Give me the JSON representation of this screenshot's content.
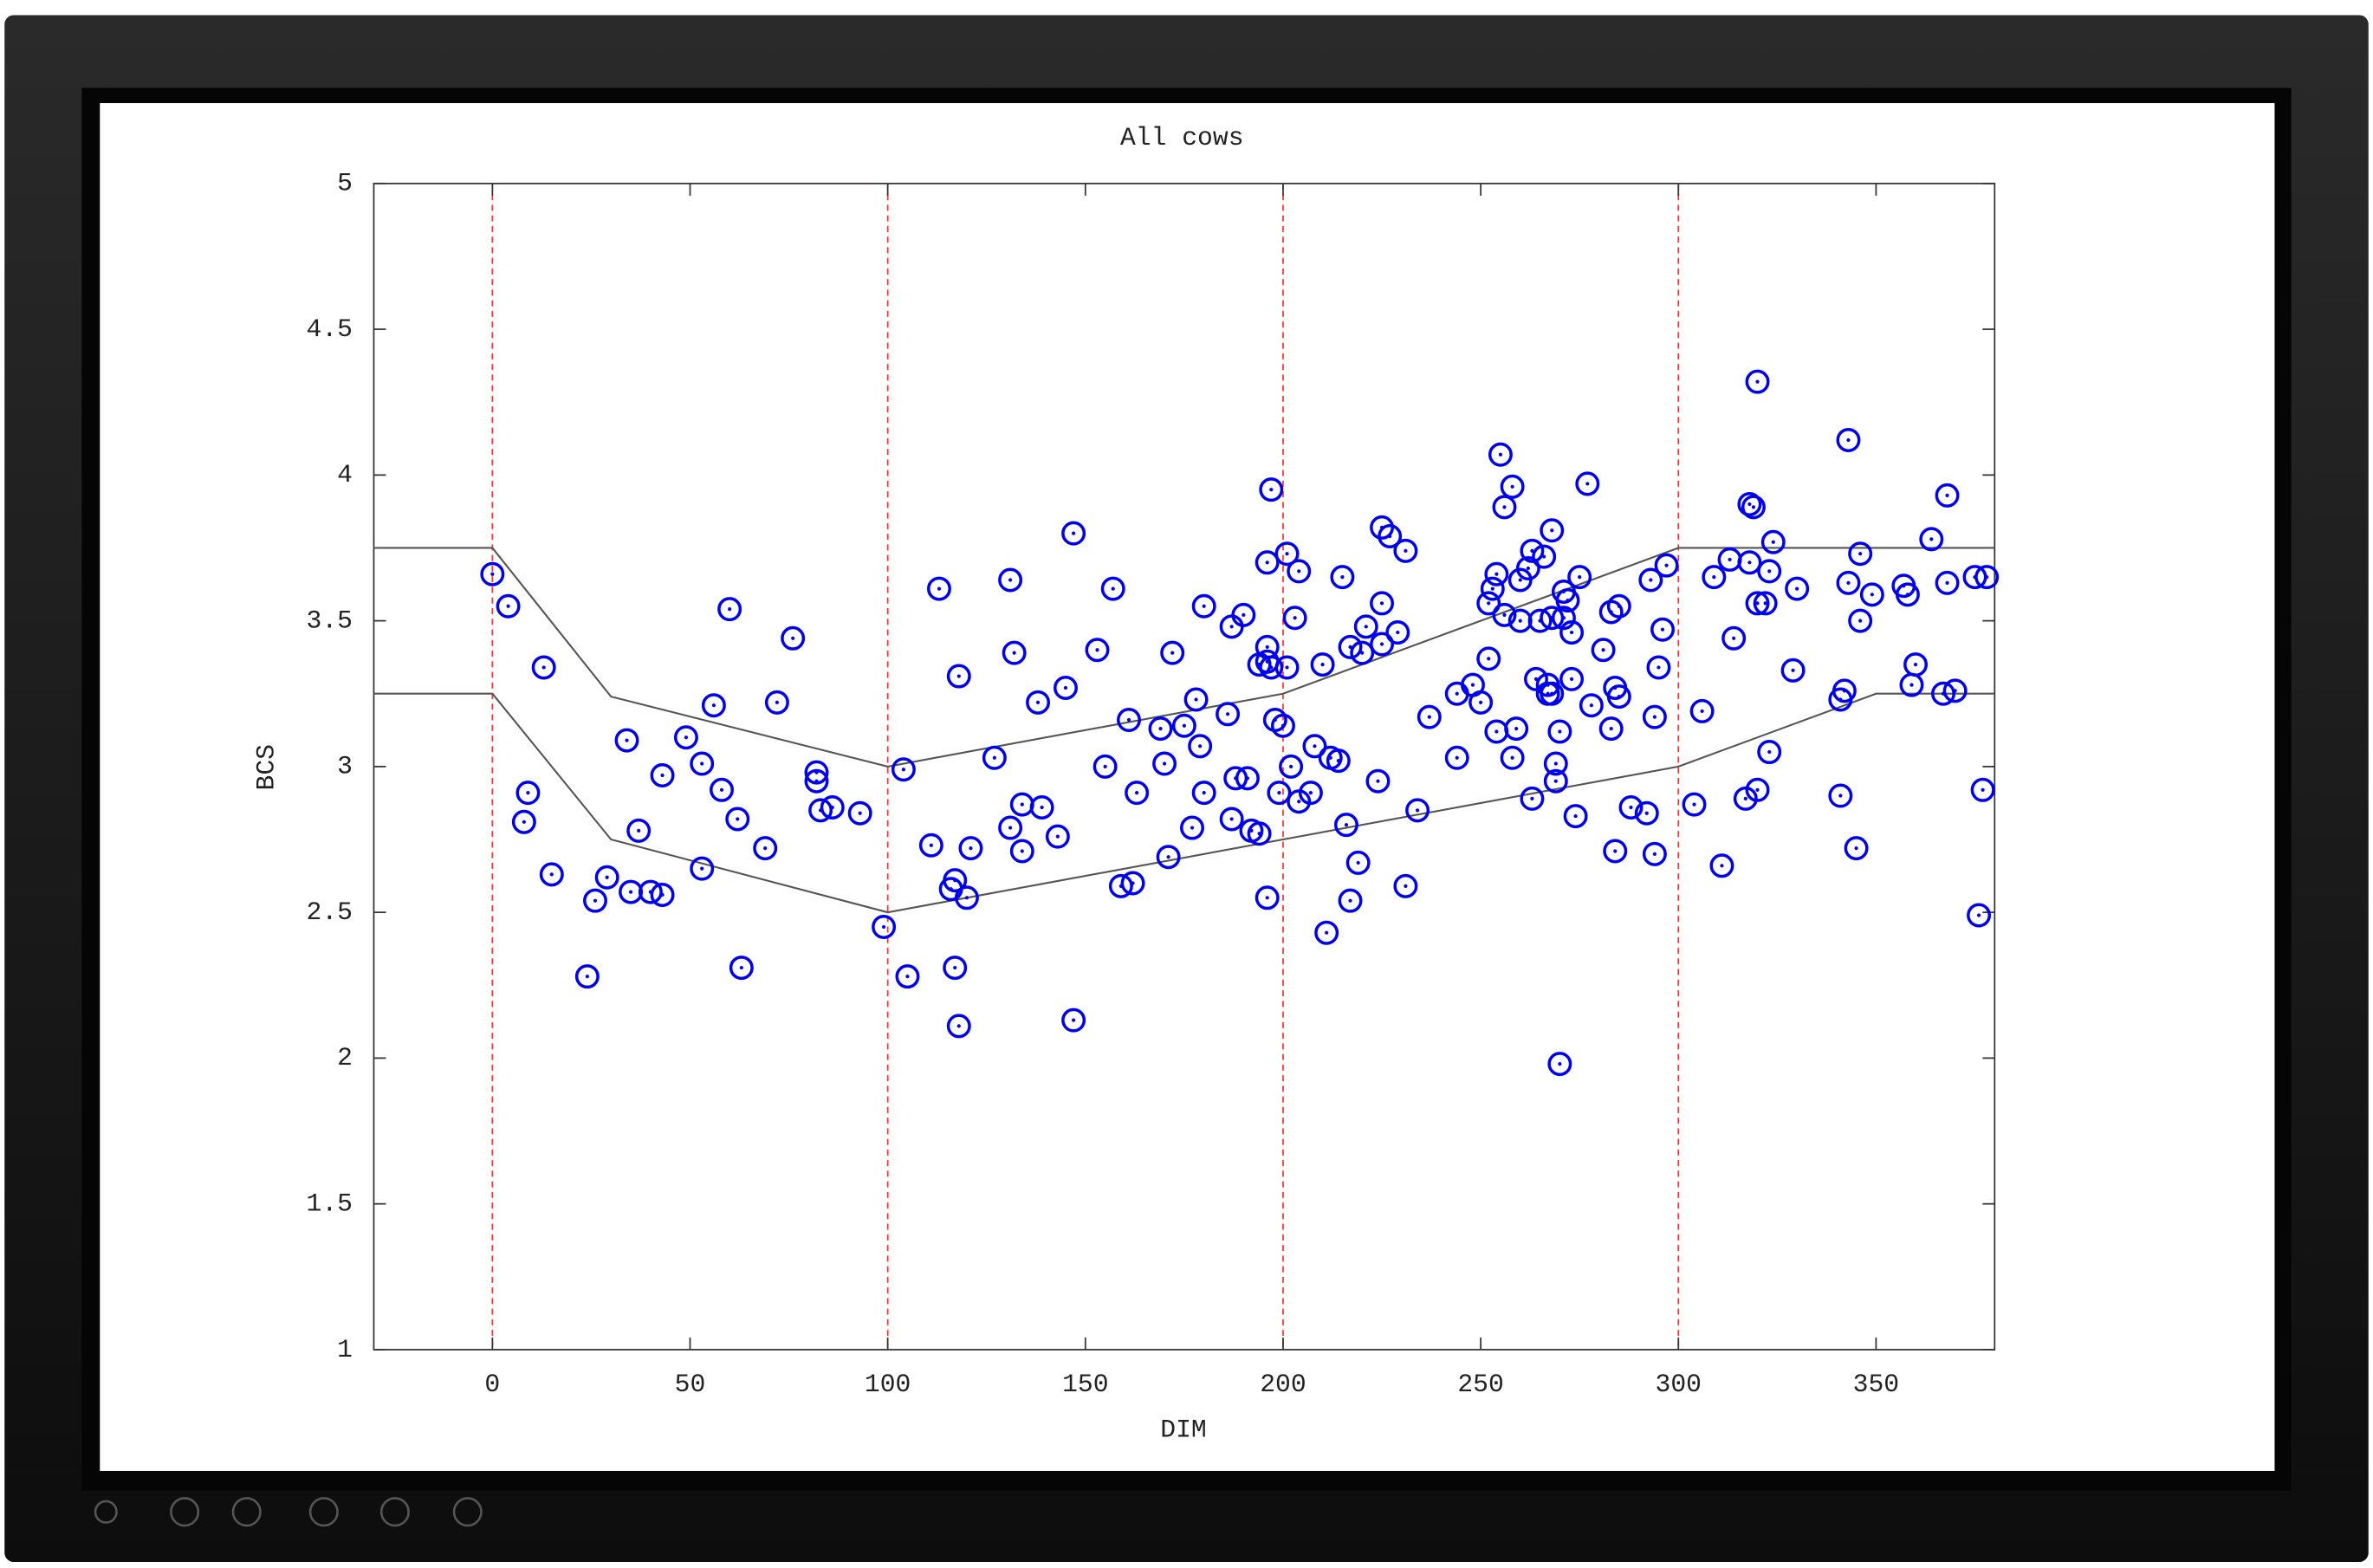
{
  "chart_data": {
    "type": "scatter",
    "title": "All cows",
    "x_label": "DIM",
    "y_label": "BCS",
    "xlim": [
      -30,
      380
    ],
    "ylim": [
      1,
      5
    ],
    "xticks": [
      0,
      50,
      100,
      150,
      200,
      250,
      300,
      350
    ],
    "yticks": [
      1,
      1.5,
      2,
      2.5,
      3,
      3.5,
      4,
      4.5,
      5
    ],
    "vlines": [
      0,
      100,
      200,
      300
    ],
    "vline_color": "#ff3333",
    "reference_lines": [
      {
        "color": "#555555",
        "x": [
          -30,
          0,
          30,
          100,
          200,
          300,
          380
        ],
        "y": [
          3.75,
          3.75,
          3.24,
          3.0,
          3.25,
          3.75,
          3.75
        ]
      },
      {
        "color": "#555555",
        "x": [
          -30,
          0,
          30,
          100,
          200,
          300,
          350,
          380
        ],
        "y": [
          3.25,
          3.25,
          2.75,
          2.5,
          2.75,
          3.0,
          3.25,
          3.25
        ]
      }
    ],
    "series": [
      {
        "color": "#0000ee",
        "x": [
          0,
          4,
          13,
          9,
          8,
          15,
          24,
          26,
          29,
          34,
          35,
          37,
          40,
          43,
          43,
          49,
          53,
          53,
          56,
          58,
          60,
          62,
          63,
          69,
          72,
          76,
          82,
          82,
          83,
          86,
          93,
          99,
          104,
          105,
          111,
          113,
          116,
          117,
          117,
          118,
          118,
          120,
          121,
          127,
          131,
          131,
          132,
          134,
          134,
          138,
          139,
          143,
          145,
          147,
          147,
          153,
          155,
          157,
          159,
          161,
          162,
          163,
          169,
          170,
          171,
          172,
          175,
          177,
          178,
          179,
          180,
          180,
          186,
          187,
          187,
          188,
          190,
          191,
          192,
          194,
          194,
          196,
          196,
          196,
          196,
          197,
          197,
          198,
          199,
          200,
          201,
          201,
          202,
          203,
          204,
          204,
          207,
          208,
          210,
          211,
          212,
          214,
          215,
          216,
          217,
          217,
          219,
          220,
          221,
          224,
          225,
          225,
          225,
          227,
          229,
          231,
          231,
          234,
          237,
          244,
          244,
          248,
          250,
          252,
          252,
          253,
          254,
          254,
          255,
          256,
          256,
          258,
          258,
          259,
          260,
          260,
          262,
          263,
          263,
          264,
          265,
          266,
          267,
          267,
          268,
          268,
          268,
          269,
          269,
          270,
          270,
          271,
          271,
          272,
          273,
          273,
          274,
          275,
          277,
          278,
          281,
          283,
          283,
          284,
          284,
          285,
          285,
          288,
          292,
          293,
          294,
          294,
          295,
          296,
          297,
          304,
          306,
          309,
          311,
          313,
          314,
          317,
          318,
          318,
          319,
          320,
          320,
          320,
          322,
          323,
          323,
          324,
          329,
          330,
          341,
          341,
          342,
          343,
          343,
          345,
          346,
          346,
          349,
          357,
          358,
          359,
          360,
          364,
          367,
          368,
          368,
          370,
          375,
          376,
          377,
          378
        ],
        "values": [
          3.66,
          3.55,
          3.34,
          2.91,
          2.81,
          2.63,
          2.28,
          2.54,
          2.62,
          3.09,
          2.57,
          2.78,
          2.57,
          2.56,
          2.97,
          3.1,
          2.65,
          3.01,
          3.21,
          2.92,
          3.54,
          2.82,
          2.31,
          2.72,
          3.22,
          3.44,
          2.98,
          2.95,
          2.85,
          2.86,
          2.84,
          2.45,
          2.99,
          2.28,
          2.73,
          3.61,
          2.58,
          2.61,
          2.31,
          3.31,
          2.11,
          2.55,
          2.72,
          3.03,
          2.79,
          3.64,
          3.39,
          2.87,
          2.71,
          3.22,
          2.86,
          2.76,
          3.27,
          3.8,
          2.13,
          3.4,
          3.0,
          3.61,
          2.59,
          3.16,
          2.6,
          2.91,
          3.13,
          3.01,
          2.69,
          3.39,
          3.14,
          2.79,
          3.23,
          3.07,
          3.55,
          2.91,
          3.18,
          3.48,
          2.82,
          2.96,
          3.52,
          2.96,
          2.78,
          2.77,
          3.35,
          3.41,
          2.55,
          3.7,
          3.36,
          3.95,
          3.34,
          3.16,
          2.91,
          3.14,
          3.34,
          3.73,
          3.0,
          3.51,
          3.67,
          2.88,
          2.91,
          3.07,
          3.35,
          2.43,
          3.03,
          3.02,
          3.65,
          2.8,
          3.41,
          2.54,
          2.67,
          3.39,
          3.48,
          2.95,
          3.56,
          3.82,
          3.42,
          3.79,
          3.46,
          3.74,
          2.59,
          2.85,
          3.17,
          3.03,
          3.25,
          3.28,
          3.22,
          3.37,
          3.56,
          3.61,
          3.66,
          3.12,
          4.07,
          3.89,
          3.52,
          3.96,
          3.03,
          3.13,
          3.64,
          3.5,
          3.68,
          3.74,
          2.89,
          3.3,
          3.5,
          3.72,
          3.25,
          3.28,
          3.81,
          3.25,
          3.51,
          2.95,
          3.01,
          1.98,
          3.12,
          3.6,
          3.51,
          3.57,
          3.3,
          3.46,
          2.83,
          3.65,
          3.97,
          3.21,
          3.4,
          3.13,
          3.53,
          2.71,
          3.27,
          3.24,
          3.55,
          2.86,
          2.84,
          3.64,
          3.17,
          2.7,
          3.34,
          3.47,
          3.69,
          2.87,
          3.19,
          3.65,
          2.66,
          3.71,
          3.44,
          2.89,
          3.9,
          3.7,
          3.89,
          2.92,
          3.56,
          4.32,
          3.56,
          3.67,
          3.05,
          3.77,
          3.33,
          3.61,
          2.9,
          3.23,
          3.26,
          4.12,
          3.63,
          2.72,
          3.5,
          3.73,
          3.59,
          3.62,
          3.59,
          3.28,
          3.35,
          3.78,
          3.25,
          3.93,
          3.63,
          3.26,
          3.65,
          2.49,
          2.92,
          3.65
        ]
      }
    ]
  }
}
